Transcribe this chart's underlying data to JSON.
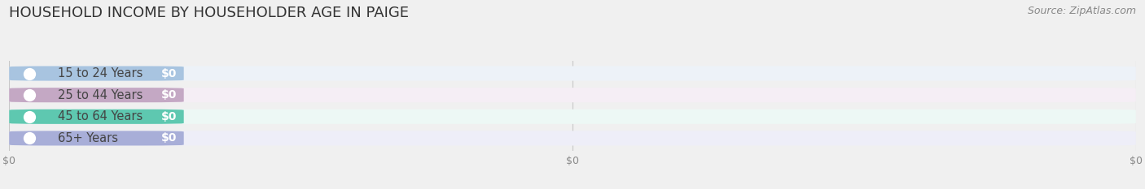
{
  "title": "HOUSEHOLD INCOME BY HOUSEHOLDER AGE IN PAIGE",
  "source": "Source: ZipAtlas.com",
  "categories": [
    "15 to 24 Years",
    "25 to 44 Years",
    "45 to 64 Years",
    "65+ Years"
  ],
  "values": [
    0,
    0,
    0,
    0
  ],
  "bar_colors": [
    "#a8c4e0",
    "#c4a8c4",
    "#5ec8b0",
    "#a8aed8"
  ],
  "bar_bg_colors": [
    "#edf2f8",
    "#f5eef5",
    "#edf8f5",
    "#eeeef8"
  ],
  "dot_colors": [
    "#a8c4e0",
    "#c4a8c4",
    "#5ec8b0",
    "#a8aed8"
  ],
  "bg_color": "#f0f0f0",
  "title_fontsize": 13,
  "source_fontsize": 9,
  "bar_label_fontsize": 10,
  "category_fontsize": 10.5,
  "tick_label_fontsize": 9
}
